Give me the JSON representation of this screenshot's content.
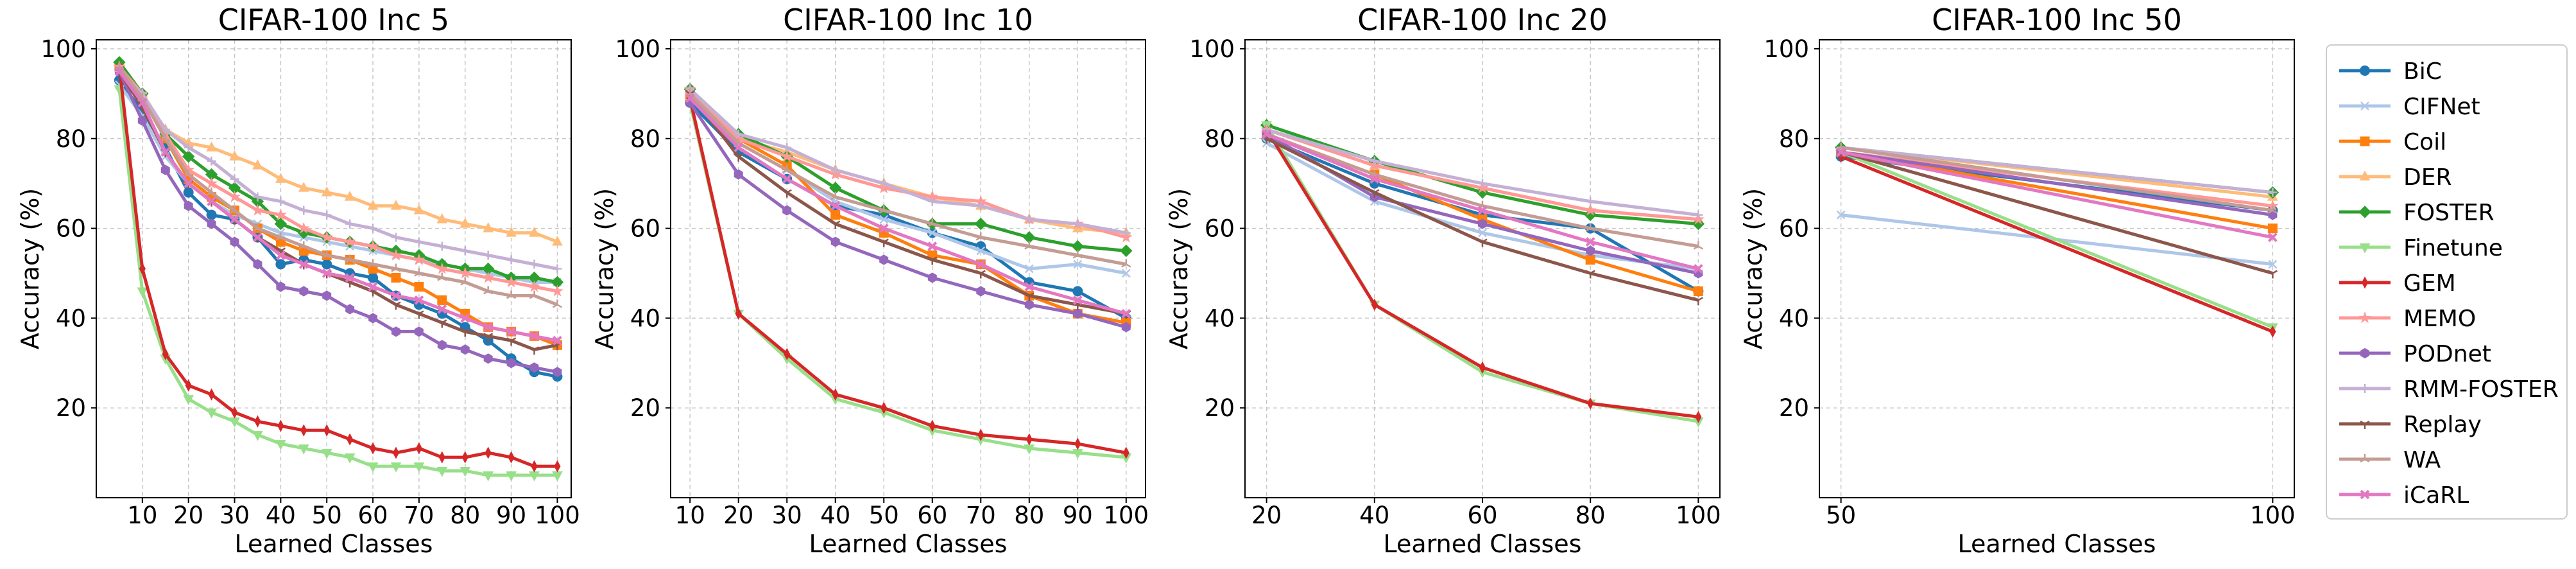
{
  "methods": [
    "BiC",
    "CIFNet",
    "Coil",
    "DER",
    "FOSTER",
    "Finetune",
    "GEM",
    "MEMO",
    "PODnet",
    "RMM-FOSTER",
    "Replay",
    "WA",
    "iCaRL"
  ],
  "style": {
    "BiC": {
      "color": "#1f77b4",
      "marker": "circle"
    },
    "CIFNet": {
      "color": "#aec7e8",
      "marker": "x"
    },
    "Coil": {
      "color": "#ff7f0e",
      "marker": "square"
    },
    "DER": {
      "color": "#ffbb78",
      "marker": "triangle-up"
    },
    "FOSTER": {
      "color": "#2ca02c",
      "marker": "diamond"
    },
    "Finetune": {
      "color": "#98df8a",
      "marker": "triangle-down"
    },
    "GEM": {
      "color": "#d62728",
      "marker": "thin-diamond"
    },
    "MEMO": {
      "color": "#ff9896",
      "marker": "star"
    },
    "PODnet": {
      "color": "#9467bd",
      "marker": "hexagon"
    },
    "RMM-FOSTER": {
      "color": "#c5b0d5",
      "marker": "plus"
    },
    "Replay": {
      "color": "#8c564b",
      "marker": "tri-down"
    },
    "WA": {
      "color": "#c49c94",
      "marker": "tri-up"
    },
    "iCaRL": {
      "color": "#e377c2",
      "marker": "x-bold"
    }
  },
  "chart_data": [
    {
      "type": "line",
      "title": "CIFAR-100 Inc 5",
      "xlabel": "Learned Classes",
      "ylabel": "Accuracy (%)",
      "xlim": [
        0,
        103
      ],
      "ylim": [
        0,
        102
      ],
      "xticks": [
        10,
        20,
        30,
        40,
        50,
        60,
        70,
        80,
        90,
        100
      ],
      "yticks": [
        20,
        40,
        60,
        80,
        100
      ],
      "grid": true,
      "x": [
        5,
        10,
        15,
        20,
        25,
        30,
        35,
        40,
        45,
        50,
        55,
        60,
        65,
        70,
        75,
        80,
        85,
        90,
        95,
        100
      ],
      "series": [
        {
          "name": "BiC",
          "values": [
            93,
            86,
            78,
            68,
            63,
            62,
            58,
            52,
            53,
            52,
            50,
            49,
            45,
            43,
            41,
            38,
            35,
            31,
            28,
            27
          ]
        },
        {
          "name": "CIFNet",
          "values": [
            92,
            85,
            76,
            70,
            66,
            63,
            61,
            59,
            58,
            57,
            56,
            55,
            54,
            53,
            52,
            51,
            50,
            49,
            48,
            48
          ]
        },
        {
          "name": "Coil",
          "values": [
            96,
            89,
            80,
            71,
            67,
            64,
            60,
            57,
            55,
            54,
            53,
            51,
            49,
            47,
            44,
            41,
            38,
            37,
            36,
            34
          ]
        },
        {
          "name": "DER",
          "values": [
            97,
            90,
            82,
            79,
            78,
            76,
            74,
            71,
            69,
            68,
            67,
            65,
            65,
            64,
            62,
            61,
            60,
            59,
            59,
            57
          ]
        },
        {
          "name": "FOSTER",
          "values": [
            97,
            90,
            81,
            76,
            72,
            69,
            66,
            61,
            59,
            58,
            57,
            56,
            55,
            54,
            52,
            51,
            51,
            49,
            49,
            48
          ]
        },
        {
          "name": "Finetune",
          "values": [
            91,
            46,
            31,
            22,
            19,
            17,
            14,
            12,
            11,
            10,
            9,
            7,
            7,
            7,
            6,
            6,
            5,
            5,
            5,
            5
          ]
        },
        {
          "name": "GEM",
          "values": [
            96,
            51,
            32,
            25,
            23,
            19,
            17,
            16,
            15,
            15,
            13,
            11,
            10,
            11,
            9,
            9,
            10,
            9,
            7,
            7
          ]
        },
        {
          "name": "MEMO",
          "values": [
            96,
            90,
            81,
            73,
            70,
            67,
            64,
            63,
            60,
            58,
            57,
            56,
            54,
            53,
            51,
            50,
            49,
            48,
            47,
            46
          ]
        },
        {
          "name": "PODnet",
          "values": [
            95,
            84,
            73,
            65,
            61,
            57,
            52,
            47,
            46,
            45,
            42,
            40,
            37,
            37,
            34,
            33,
            31,
            30,
            29,
            28
          ]
        },
        {
          "name": "RMM-FOSTER",
          "values": [
            95,
            90,
            82,
            78,
            75,
            71,
            67,
            66,
            64,
            63,
            61,
            60,
            58,
            57,
            56,
            55,
            54,
            53,
            52,
            51
          ]
        },
        {
          "name": "Replay",
          "values": [
            95,
            87,
            77,
            70,
            66,
            62,
            58,
            55,
            52,
            50,
            48,
            46,
            43,
            41,
            39,
            37,
            36,
            35,
            33,
            34
          ]
        },
        {
          "name": "WA",
          "values": [
            96,
            89,
            80,
            72,
            68,
            64,
            60,
            58,
            56,
            54,
            53,
            52,
            51,
            50,
            49,
            48,
            46,
            45,
            45,
            43
          ]
        },
        {
          "name": "iCaRL",
          "values": [
            95,
            88,
            77,
            70,
            66,
            62,
            58,
            54,
            52,
            50,
            49,
            47,
            45,
            44,
            42,
            40,
            38,
            37,
            36,
            35
          ]
        }
      ]
    },
    {
      "type": "line",
      "title": "CIFAR-100 Inc 10",
      "xlabel": "Learned Classes",
      "ylabel": "Accuracy (%)",
      "xlim": [
        6,
        104
      ],
      "ylim": [
        0,
        102
      ],
      "xticks": [
        10,
        20,
        30,
        40,
        50,
        60,
        70,
        80,
        90,
        100
      ],
      "yticks": [
        20,
        40,
        60,
        80,
        100
      ],
      "grid": true,
      "x": [
        10,
        20,
        30,
        40,
        50,
        60,
        70,
        80,
        90,
        100
      ],
      "series": [
        {
          "name": "BiC",
          "values": [
            88,
            77,
            71,
            65,
            63,
            59,
            56,
            48,
            46,
            40
          ]
        },
        {
          "name": "CIFNet",
          "values": [
            90,
            79,
            73,
            66,
            62,
            59,
            55,
            51,
            52,
            50
          ]
        },
        {
          "name": "Coil",
          "values": [
            89,
            80,
            74,
            63,
            59,
            54,
            52,
            45,
            41,
            39
          ]
        },
        {
          "name": "DER",
          "values": [
            91,
            80,
            77,
            73,
            70,
            67,
            65,
            62,
            60,
            59
          ]
        },
        {
          "name": "FOSTER",
          "values": [
            91,
            81,
            76,
            69,
            64,
            61,
            61,
            58,
            56,
            55
          ]
        },
        {
          "name": "Finetune",
          "values": [
            88,
            41,
            31,
            22,
            19,
            15,
            13,
            11,
            10,
            9
          ]
        },
        {
          "name": "GEM",
          "values": [
            89,
            41,
            32,
            23,
            20,
            16,
            14,
            13,
            12,
            10
          ]
        },
        {
          "name": "MEMO",
          "values": [
            91,
            80,
            76,
            72,
            69,
            67,
            66,
            62,
            61,
            58
          ]
        },
        {
          "name": "PODnet",
          "values": [
            88,
            72,
            64,
            57,
            53,
            49,
            46,
            43,
            41,
            38
          ]
        },
        {
          "name": "RMM-FOSTER",
          "values": [
            91,
            81,
            78,
            73,
            70,
            66,
            65,
            62,
            61,
            59
          ]
        },
        {
          "name": "Replay",
          "values": [
            90,
            76,
            68,
            61,
            57,
            53,
            50,
            45,
            43,
            41
          ]
        },
        {
          "name": "WA",
          "values": [
            90,
            79,
            73,
            67,
            64,
            61,
            58,
            56,
            54,
            52
          ]
        },
        {
          "name": "iCaRL",
          "values": [
            89,
            78,
            71,
            65,
            60,
            56,
            52,
            47,
            44,
            41
          ]
        }
      ]
    },
    {
      "type": "line",
      "title": "CIFAR-100 Inc 20",
      "xlabel": "Learned Classes",
      "ylabel": "Accuracy (%)",
      "xlim": [
        16,
        104
      ],
      "ylim": [
        0,
        102
      ],
      "xticks": [
        20,
        40,
        60,
        80,
        100
      ],
      "yticks": [
        20,
        40,
        60,
        80,
        100
      ],
      "grid": true,
      "x": [
        20,
        40,
        60,
        80,
        100
      ],
      "series": [
        {
          "name": "BiC",
          "values": [
            80,
            70,
            63,
            60,
            46
          ]
        },
        {
          "name": "CIFNet",
          "values": [
            79,
            66,
            59,
            54,
            51
          ]
        },
        {
          "name": "Coil",
          "values": [
            81,
            72,
            62,
            53,
            46
          ]
        },
        {
          "name": "DER",
          "values": [
            82,
            74,
            69,
            64,
            62
          ]
        },
        {
          "name": "FOSTER",
          "values": [
            83,
            75,
            68,
            63,
            61
          ]
        },
        {
          "name": "Finetune",
          "values": [
            83,
            43,
            28,
            21,
            17
          ]
        },
        {
          "name": "GEM",
          "values": [
            82,
            43,
            29,
            21,
            18
          ]
        },
        {
          "name": "MEMO",
          "values": [
            82,
            74,
            69,
            64,
            62
          ]
        },
        {
          "name": "PODnet",
          "values": [
            81,
            67,
            61,
            55,
            50
          ]
        },
        {
          "name": "RMM-FOSTER",
          "values": [
            82,
            75,
            70,
            66,
            63
          ]
        },
        {
          "name": "Replay",
          "values": [
            80,
            68,
            57,
            50,
            44
          ]
        },
        {
          "name": "WA",
          "values": [
            81,
            72,
            65,
            60,
            56
          ]
        },
        {
          "name": "iCaRL",
          "values": [
            81,
            71,
            64,
            57,
            51
          ]
        }
      ]
    },
    {
      "type": "line",
      "title": "CIFAR-100 Inc 50",
      "xlabel": "Learned Classes",
      "ylabel": "Accuracy (%)",
      "xlim": [
        47.5,
        102.5
      ],
      "ylim": [
        0,
        102
      ],
      "xticks": [
        50,
        100
      ],
      "yticks": [
        20,
        40,
        60,
        80,
        100
      ],
      "grid": true,
      "x": [
        50,
        100
      ],
      "series": [
        {
          "name": "BiC",
          "values": [
            76,
            64
          ]
        },
        {
          "name": "CIFNet",
          "values": [
            63,
            52
          ]
        },
        {
          "name": "Coil",
          "values": [
            77,
            60
          ]
        },
        {
          "name": "DER",
          "values": [
            78,
            67
          ]
        },
        {
          "name": "FOSTER",
          "values": [
            78,
            68
          ]
        },
        {
          "name": "Finetune",
          "values": [
            77,
            38
          ]
        },
        {
          "name": "GEM",
          "values": [
            76,
            37
          ]
        },
        {
          "name": "MEMO",
          "values": [
            77,
            65
          ]
        },
        {
          "name": "PODnet",
          "values": [
            77,
            63
          ]
        },
        {
          "name": "RMM-FOSTER",
          "values": [
            78,
            68
          ]
        },
        {
          "name": "Replay",
          "values": [
            77,
            50
          ]
        },
        {
          "name": "WA",
          "values": [
            78,
            64
          ]
        },
        {
          "name": "iCaRL",
          "values": [
            77,
            58
          ]
        }
      ]
    }
  ]
}
